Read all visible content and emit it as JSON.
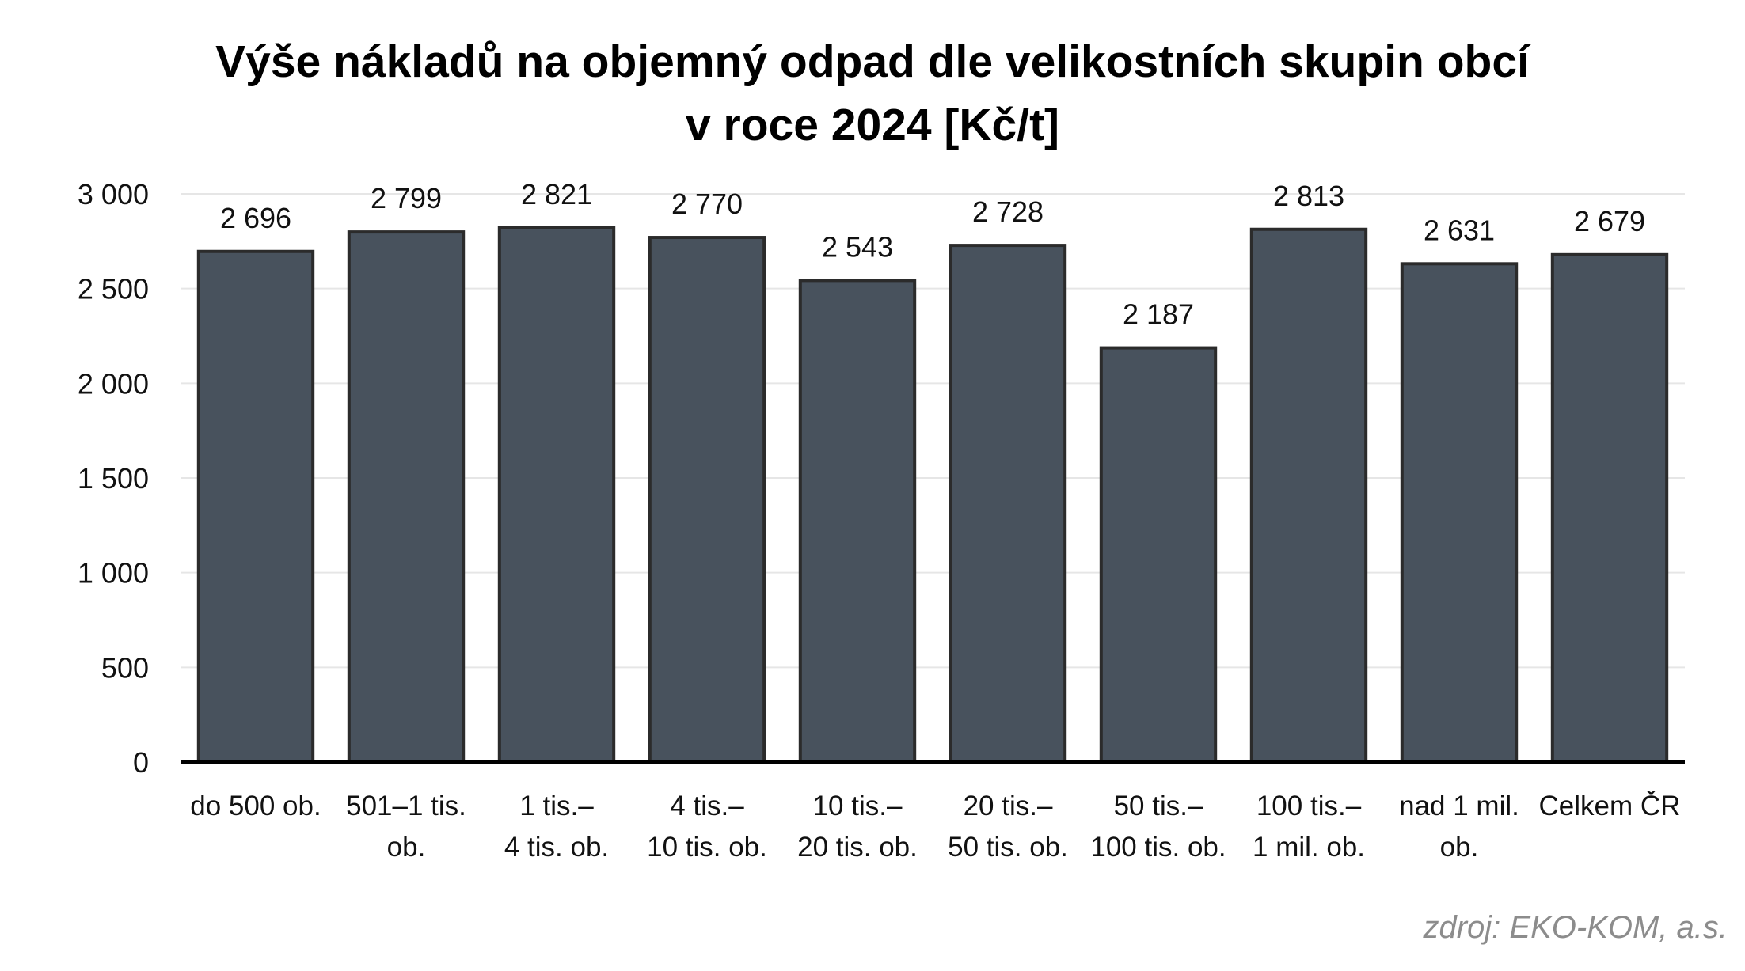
{
  "chart_data": {
    "type": "bar",
    "title": [
      "Výše nákladů na objemný odpad dle velikostních skupin obcí",
      "v roce 2024 [Kč/t]"
    ],
    "categories": [
      [
        "do 500 ob."
      ],
      [
        "501–1 tis.",
        "ob."
      ],
      [
        "1 tis.–",
        "4 tis. ob."
      ],
      [
        "4 tis.–",
        "10 tis. ob."
      ],
      [
        "10 tis.–",
        "20 tis. ob."
      ],
      [
        "20 tis.–",
        "50 tis. ob."
      ],
      [
        "50 tis.–",
        "100 tis. ob."
      ],
      [
        "100 tis.–",
        "1 mil. ob."
      ],
      [
        "nad 1 mil.",
        "ob."
      ],
      [
        "Celkem ČR"
      ]
    ],
    "values": [
      2696,
      2799,
      2821,
      2770,
      2543,
      2728,
      2187,
      2813,
      2631,
      2679
    ],
    "data_labels": [
      "2 696",
      "2 799",
      "2 821",
      "2 770",
      "2 543",
      "2 728",
      "2 187",
      "2 813",
      "2 631",
      "2 679"
    ],
    "ylim": [
      0,
      3000
    ],
    "yticks": [
      0,
      500,
      1000,
      1500,
      2000,
      2500,
      3000
    ],
    "ytick_labels": [
      "0",
      "500",
      "1 000",
      "1 500",
      "2 000",
      "2 500",
      "3 000"
    ],
    "xlabel": "",
    "ylabel": "",
    "grid": true,
    "legend": "none",
    "colors": {
      "bar_fill": "#48525d",
      "bar_stroke": "#2b2b2b",
      "grid": "#e6e6e6",
      "axis": "#000000"
    }
  },
  "source_note": "zdroj: EKO-KOM, a.s."
}
